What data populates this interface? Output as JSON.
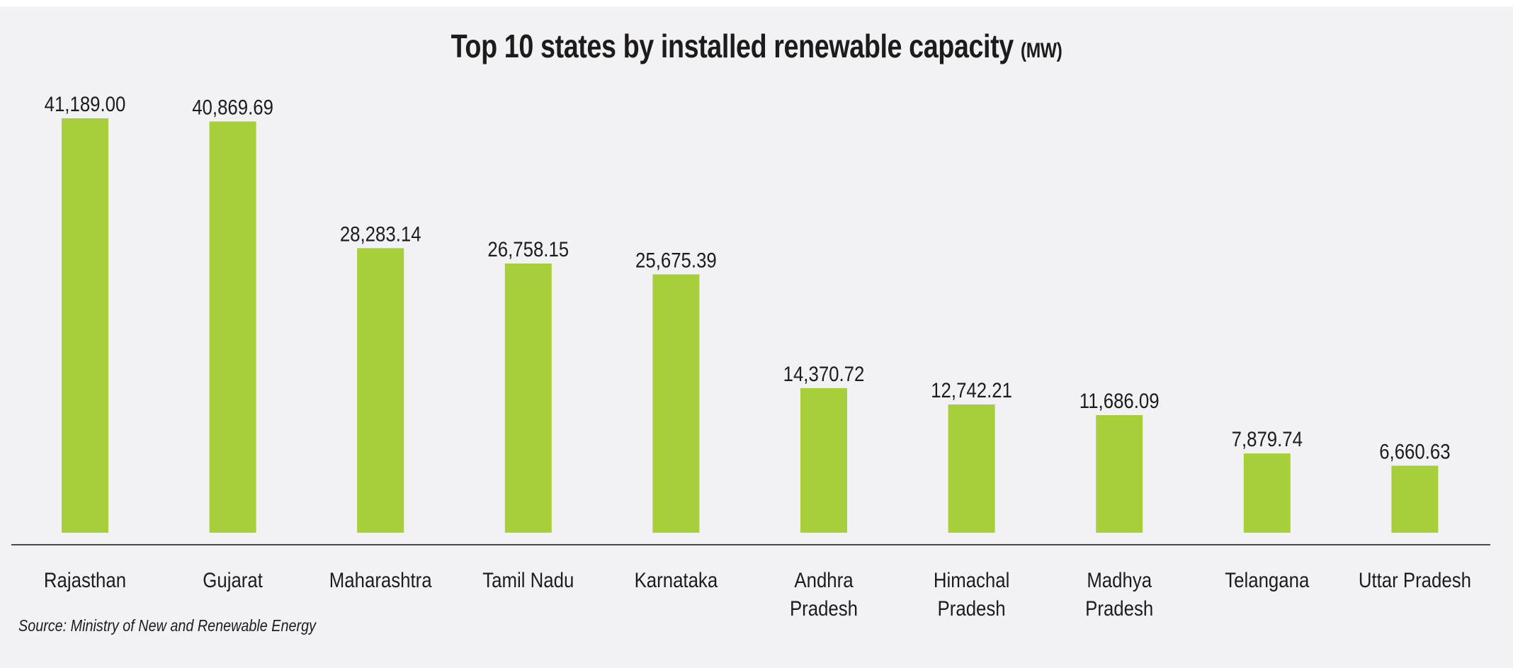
{
  "chart_data": {
    "type": "bar",
    "title": "Top 10 states by installed renewable capacity",
    "title_unit": "(MW)",
    "xlabel": "",
    "ylabel": "",
    "ylim": [
      0,
      41189
    ],
    "grid": false,
    "legend": "none",
    "categories": [
      "Rajasthan",
      "Gujarat",
      "Maharashtra",
      "Tamil Nadu",
      "Karnataka",
      "Andhra Pradesh",
      "Himachal Pradesh",
      "Madhya Pradesh",
      "Telangana",
      "Uttar Pradesh"
    ],
    "category_lines": [
      [
        "Rajasthan"
      ],
      [
        "Gujarat"
      ],
      [
        "Maharashtra"
      ],
      [
        "Tamil Nadu"
      ],
      [
        "Karnataka"
      ],
      [
        "Andhra",
        "Pradesh"
      ],
      [
        "Himachal",
        "Pradesh"
      ],
      [
        "Madhya",
        "Pradesh"
      ],
      [
        "Telangana"
      ],
      [
        "Uttar Pradesh"
      ]
    ],
    "values": [
      41189.0,
      40869.69,
      28283.14,
      26758.15,
      25675.39,
      14370.72,
      12742.21,
      11686.09,
      7879.74,
      6660.63
    ],
    "value_labels": [
      "41,189.00",
      "40,869.69",
      "28,283.14",
      "26,758.15",
      "25,675.39",
      "14,370.72",
      "12,742.21",
      "11,686.09",
      "7,879.74",
      "6,660.63"
    ],
    "source": "Source: Ministry of New and Renewable Energy"
  },
  "colors": {
    "bar": "#a7cf3a",
    "background": "#f2f2f4",
    "text": "#1e1b1c",
    "axis": "#4a4a4a"
  }
}
